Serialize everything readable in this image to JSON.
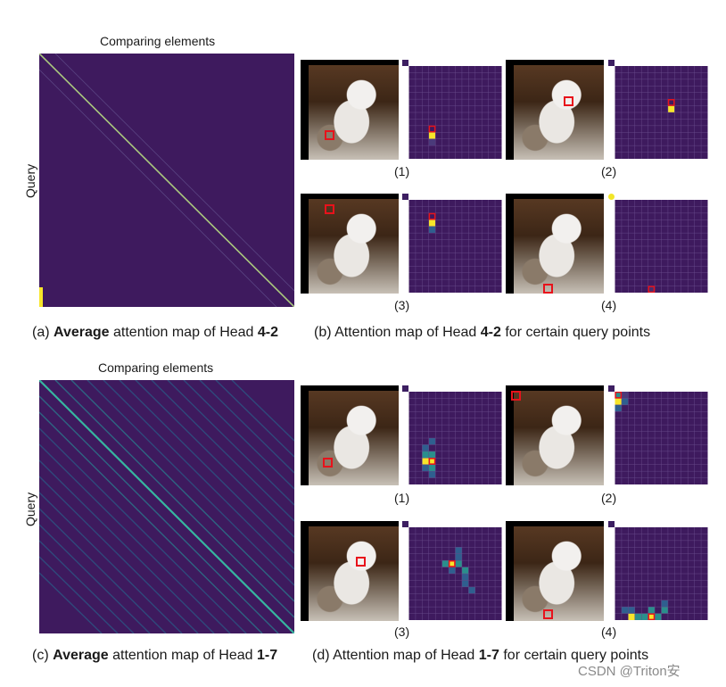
{
  "top_figure": {
    "x_label": "Comparing elements",
    "y_label": "Query",
    "sub_labels": [
      "(1)",
      "(2)",
      "(3)",
      "(4)"
    ],
    "caption_a": {
      "prefix": "(a) ",
      "bold1": "Average",
      "mid": " attention map of Head ",
      "bold2": "4-2"
    },
    "caption_b": {
      "prefix": "(b) Attention map of Head ",
      "bold": "4-2",
      "suffix": " for certain query points"
    }
  },
  "bottom_figure": {
    "x_label": "Comparing elements",
    "y_label": "Query",
    "sub_labels": [
      "(1)",
      "(2)",
      "(3)",
      "(4)"
    ],
    "caption_c": {
      "prefix": "(c) ",
      "bold1": "Average",
      "mid": " attention map of Head ",
      "bold2": "1-7"
    },
    "caption_d": {
      "prefix": "(d) Attention map of Head ",
      "bold": "1-7",
      "suffix": " for certain query points"
    }
  },
  "watermark": "CSDN @Triton安",
  "colors": {
    "heat_bg": "#3e1a5e",
    "grid_line": "#6a4c8c",
    "diag": "#b8d18a",
    "yellow": "#f7e62a",
    "teal": "#2a8f8c",
    "blue": "#2f5f8f",
    "marker": "#e8121b"
  }
}
